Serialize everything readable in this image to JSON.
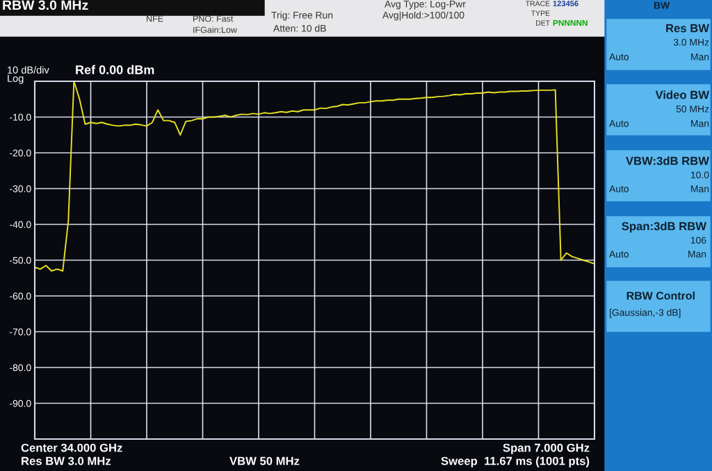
{
  "chart_data": {
    "type": "line",
    "title": "Ref 0.00 dBm",
    "ylabel": "10 dB/div\nLog",
    "categories": [
      null,
      null,
      null,
      null,
      null,
      null,
      null,
      null,
      null,
      null,
      null,
      null,
      null,
      null,
      null,
      null,
      null,
      null,
      null,
      null,
      null,
      null,
      null,
      null,
      null,
      null,
      null,
      null,
      null,
      null,
      null,
      null,
      null,
      null,
      null,
      null,
      null,
      null,
      null,
      null,
      null,
      null,
      null,
      null,
      null,
      null,
      null,
      null,
      null,
      null,
      null,
      null,
      null,
      null,
      null,
      null,
      null,
      null,
      null,
      null,
      null,
      null,
      null,
      null,
      null,
      null,
      null,
      null,
      null,
      null,
      null,
      null,
      null,
      null,
      null,
      null,
      null,
      null,
      null,
      null,
      null,
      null,
      null,
      null,
      null,
      null,
      null,
      null,
      null,
      null,
      null,
      null,
      null,
      null,
      null,
      null,
      null,
      null,
      null,
      null,
      null
    ],
    "series": [
      {
        "color": "#e8e020",
        "values": [
          -52,
          -52.5,
          -51.5,
          -53,
          -52.5,
          -53,
          -39,
          0,
          -5,
          -12,
          -11.5,
          -11.8,
          -11.5,
          -12,
          -12.3,
          -12.5,
          -12.3,
          -12.3,
          -12,
          -12.2,
          -12.5,
          -11.5,
          -8,
          -11,
          -11,
          -11.5,
          -15,
          -11.2,
          -11,
          -10.5,
          -10.5,
          -10,
          -10,
          -9.8,
          -9.5,
          -10,
          -9.5,
          -9.2,
          -9.3,
          -9,
          -9.2,
          -8.8,
          -9,
          -8.8,
          -8.5,
          -8.7,
          -8.3,
          -8.5,
          -8,
          -8,
          -8,
          -7.5,
          -7.6,
          -7.2,
          -7,
          -6.5,
          -6.6,
          -6.3,
          -6,
          -6,
          -5.7,
          -5.5,
          -5.5,
          -5.3,
          -5.3,
          -5,
          -5,
          -5,
          -4.8,
          -4.7,
          -4.5,
          -4.5,
          -4.3,
          -4.2,
          -4,
          -3.7,
          -3.8,
          -3.5,
          -3.5,
          -3.3,
          -3.3,
          -3,
          -3.2,
          -3,
          -3,
          -2.8,
          -2.8,
          -2.7,
          -2.7,
          -2.6,
          -2.5,
          -2.5,
          -2.5,
          -2.4,
          -50,
          -48,
          -49,
          -49.5,
          -50,
          -50.5,
          -51
        ]
      }
    ],
    "ylim": [
      -100,
      0
    ],
    "yticks": [
      {
        "value": 0,
        "label": null
      },
      {
        "value": -10,
        "label": "-10.0"
      },
      {
        "value": -20,
        "label": "-20.0"
      },
      {
        "value": -30,
        "label": "-30.0"
      },
      {
        "value": -40,
        "label": "-40.0"
      },
      {
        "value": -50,
        "label": "-50.0"
      },
      {
        "value": -60,
        "label": "-60.0"
      },
      {
        "value": -70,
        "label": "-70.0"
      },
      {
        "value": -80,
        "label": "-80.0"
      },
      {
        "value": -90,
        "label": "-90.0"
      },
      {
        "value": -100,
        "label": null
      }
    ],
    "tick_labels": "y",
    "grid": true,
    "legend": false,
    "annotations": [
      "RBW 3.0 MHz",
      "NFE",
      "PNO: Fast",
      "IFGain:Low",
      "Trig: Free Run",
      "Atten: 10 dB",
      "Avg Type: Log-Pwr",
      "Avg|Hold:>100/100",
      "TRACE",
      "123456",
      "TYPE",
      "DET",
      "PNNNNN",
      "BW",
      "Center 34.000 GHz",
      "Res BW 3.0 MHz",
      "VBW 50 MHz",
      "Span 7.000 GHz",
      "Sweep  11.67 ms (1001 pts)",
      "Res BW",
      "3.0 MHz",
      "Auto",
      "Man",
      "Video BW",
      "50 MHz",
      "Auto",
      "Man",
      "VBW:3dB RBW",
      "10.0",
      "Auto",
      "Man",
      "Span:3dB RBW",
      "106",
      "Auto",
      "Man",
      "RBW Control",
      "[Gaussian,-3 dB]"
    ]
  }
}
